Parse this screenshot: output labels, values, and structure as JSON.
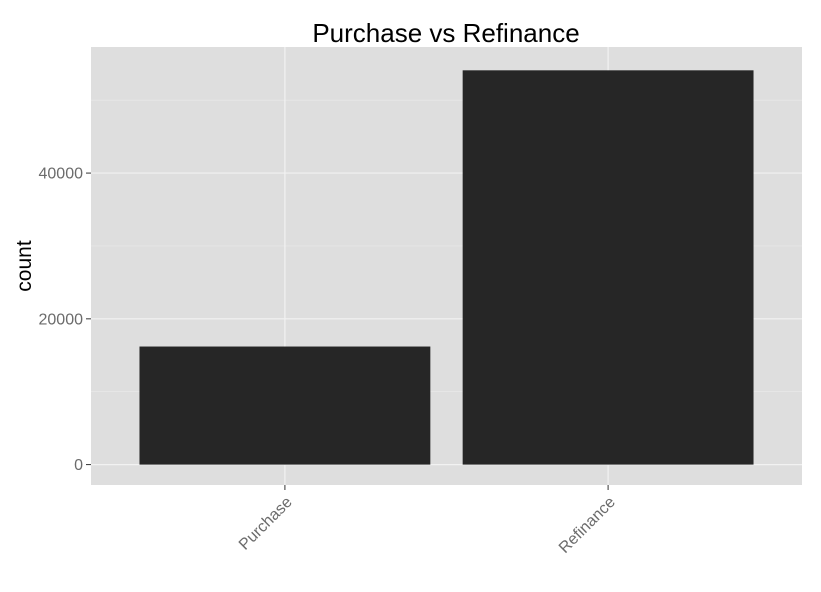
{
  "chart_data": {
    "type": "bar",
    "title": "Purchase vs Refinance",
    "xlabel": "",
    "ylabel": "count",
    "categories": [
      "Purchase",
      "Refinance"
    ],
    "values": [
      16200,
      54100
    ],
    "ylim": [
      -2800,
      57300
    ],
    "yticks": [
      0,
      20000,
      40000
    ],
    "ytick_labels": [
      "0",
      "20000",
      "40000"
    ],
    "grid": true,
    "legend": "none",
    "colors": {
      "bar": "#262626",
      "panel": "#dedede",
      "gridline": "#f2f2f2"
    }
  }
}
